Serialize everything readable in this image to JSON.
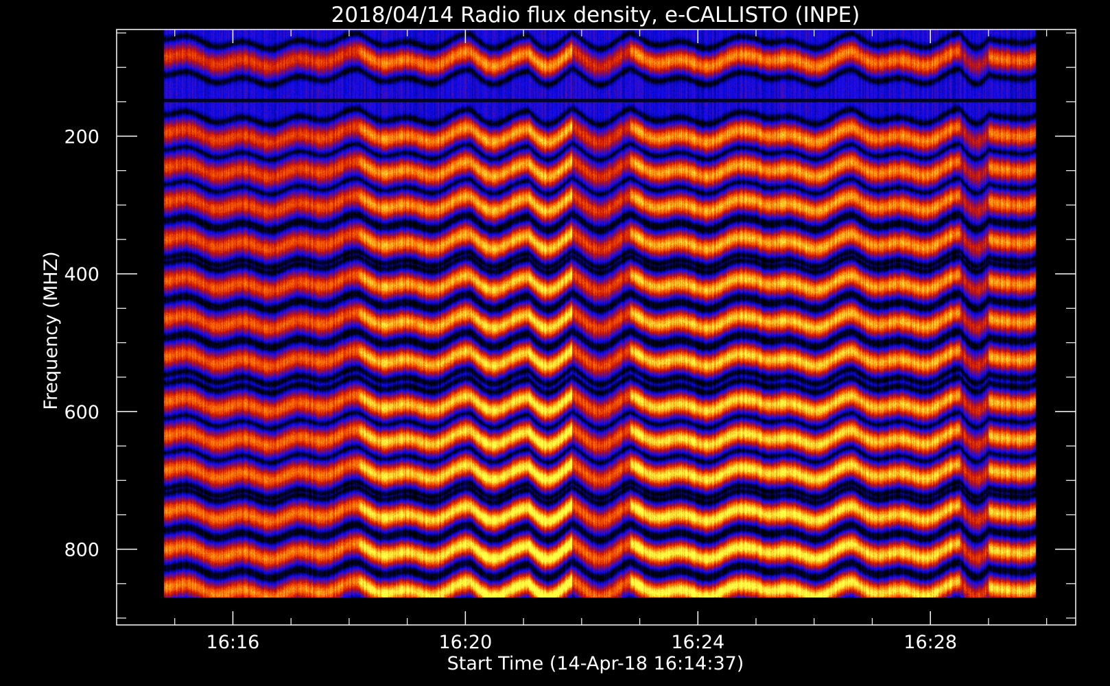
{
  "chart_data": {
    "type": "heatmap",
    "title": "2018/04/14  Radio flux density, e-CALLISTO (INPE)",
    "xlabel": "Start Time (14-Apr-18 16:14:37)",
    "ylabel": "Frequency (MHZ)",
    "y_reversed": true,
    "xlim": [
      "16:14:00",
      "16:30:30"
    ],
    "ylim": [
      45,
      910
    ],
    "data_x_range": [
      "16:14:49",
      "16:29:49"
    ],
    "data_y_range": [
      45,
      870
    ],
    "x_ticks": [
      {
        "time": "16:16",
        "label": "16:16"
      },
      {
        "time": "16:20",
        "label": "16:20"
      },
      {
        "time": "16:24",
        "label": "16:24"
      },
      {
        "time": "16:28",
        "label": "16:28"
      }
    ],
    "x_minor_ticks": [
      "16:15",
      "16:17",
      "16:18",
      "16:19",
      "16:21",
      "16:22",
      "16:23",
      "16:25",
      "16:26",
      "16:27",
      "16:29",
      "16:30"
    ],
    "y_ticks": [
      {
        "value": 200,
        "label": "200"
      },
      {
        "value": 400,
        "label": "400"
      },
      {
        "value": 600,
        "label": "600"
      },
      {
        "value": 800,
        "label": "800"
      }
    ],
    "y_minor_ticks": [
      50,
      100,
      150,
      250,
      300,
      350,
      450,
      500,
      550,
      650,
      700,
      750,
      850,
      900
    ],
    "colormap": [
      "#000000",
      "#0b0bff",
      "#cc1100",
      "#ff6a00",
      "#ffff44"
    ],
    "band_centers_mhz": [
      80,
      190,
      240,
      290,
      345,
      405,
      460,
      515,
      580,
      630,
      680,
      740,
      795,
      850
    ],
    "time_segments": [
      {
        "start": "16:14:49",
        "end": "16:18:10",
        "intensity": 0.62
      },
      {
        "start": "16:18:10",
        "end": "16:20:05",
        "intensity": 0.85
      },
      {
        "start": "16:20:05",
        "end": "16:21:05",
        "intensity": 0.92
      },
      {
        "start": "16:21:05",
        "end": "16:21:50",
        "intensity": 0.95
      },
      {
        "start": "16:21:50",
        "end": "16:22:50",
        "intensity": 0.55
      },
      {
        "start": "16:22:50",
        "end": "16:25:00",
        "intensity": 0.9
      },
      {
        "start": "16:25:00",
        "end": "16:26:40",
        "intensity": 0.88
      },
      {
        "start": "16:26:40",
        "end": "16:28:30",
        "intensity": 0.82
      },
      {
        "start": "16:28:30",
        "end": "16:29:00",
        "intensity": 0.45
      },
      {
        "start": "16:29:00",
        "end": "16:29:49",
        "intensity": 0.8
      }
    ]
  }
}
